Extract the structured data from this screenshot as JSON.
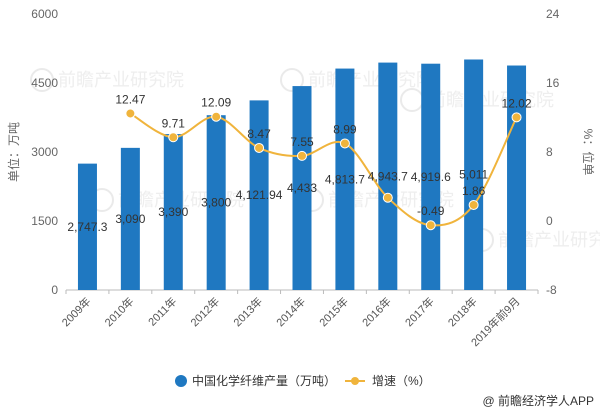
{
  "chart_data": {
    "type": "bar",
    "categories": [
      "2009年",
      "2010年",
      "2011年",
      "2012年",
      "2013年",
      "2014年",
      "2015年",
      "2016年",
      "2017年",
      "2018年",
      "2019年前9月"
    ],
    "series": [
      {
        "name": "中国化学纤维产量（万吨）",
        "type": "bar",
        "axis": "left",
        "color": "#1f78c1",
        "values": [
          2747.3,
          3090,
          3390,
          3800,
          4121.94,
          4433,
          4813.7,
          4943.7,
          4919.6,
          5011,
          4880
        ],
        "labels": [
          "2,747.3",
          "3,090",
          "3,390",
          "3,800",
          "4,121.94",
          "4,433",
          "4,813.7",
          "4,943.7",
          "4,919.6",
          "5,011",
          ""
        ]
      },
      {
        "name": "增速（%）",
        "type": "line",
        "axis": "right",
        "color": "#f0b43c",
        "values": [
          null,
          12.47,
          9.71,
          12.09,
          8.47,
          7.55,
          8.99,
          2.7,
          -0.49,
          1.86,
          12.02
        ],
        "labels": [
          "",
          "12.47",
          "9.71",
          "12.09",
          "8.47",
          "7.55",
          "8.99",
          "",
          "-0.49",
          "1.86",
          "12.02"
        ]
      }
    ],
    "ylabel_left": "单位：万吨",
    "ylabel_right": "%：位单",
    "ylim_left": [
      0,
      6000
    ],
    "yticks_left": [
      "0",
      "1500",
      "3000",
      "4500",
      "6000"
    ],
    "ylim_right": [
      -8,
      24
    ],
    "yticks_right": [
      "-8",
      "0",
      "8",
      "16",
      "24"
    ],
    "grid": false,
    "legend": "bottom"
  },
  "credit": "@ 前瞻经济学人APP",
  "watermark": "前瞻产业研究院"
}
